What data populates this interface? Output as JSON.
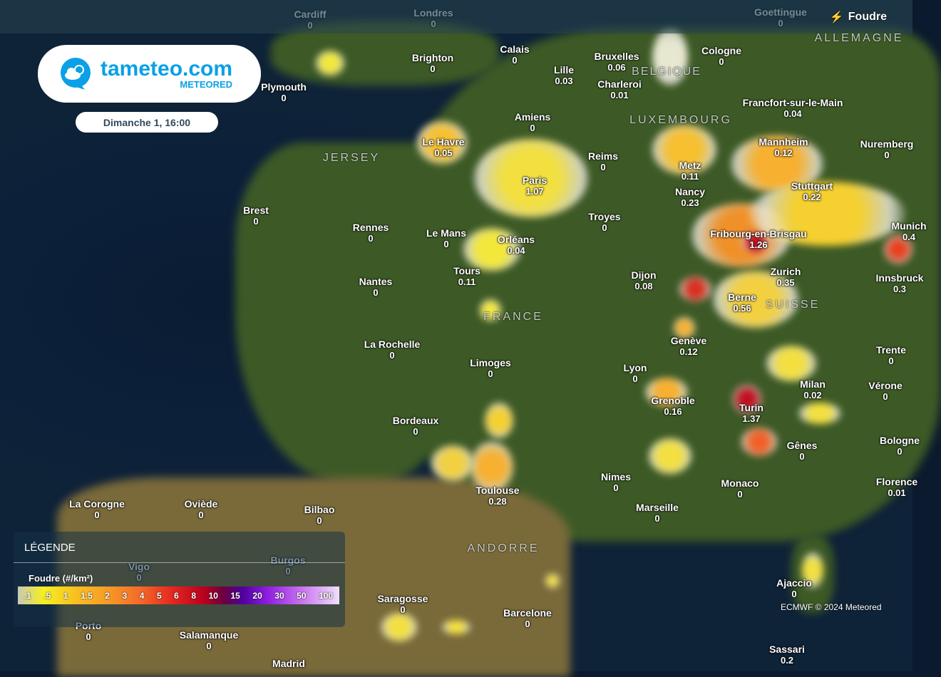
{
  "header": {
    "layer_label": "Foudre",
    "layer_icon": "lightning-icon"
  },
  "brand": {
    "name": "tameteo.com",
    "sub": "METEORED",
    "icon": "cloud-sun-chat-icon",
    "color": "#0aa0e6"
  },
  "date_label": "Dimanche 1, 16:00",
  "legend": {
    "title": "LÉGENDE",
    "unit": "Foudre (#/km²)",
    "steps": [
      ".1",
      ".5",
      "1",
      "1.5",
      "2",
      "3",
      "4",
      "5",
      "6",
      "8",
      "10",
      "15",
      "20",
      "30",
      "50",
      "100"
    ]
  },
  "attribution": "ECMWF © 2024 Meteored",
  "regions": [
    "JERSEY",
    "BELGIQUE",
    "LUXEMBOURG",
    "ALLEMAGNE",
    "FRANCE",
    "SUISSE",
    "ANDORRE"
  ],
  "cities": [
    {
      "name": "Cardiff",
      "value": "0"
    },
    {
      "name": "Londres",
      "value": "0"
    },
    {
      "name": "Goettingue",
      "value": "0"
    },
    {
      "name": "Calais",
      "value": "0"
    },
    {
      "name": "Brighton",
      "value": "0"
    },
    {
      "name": "Bruxelles",
      "value": "0.06"
    },
    {
      "name": "Cologne",
      "value": "0"
    },
    {
      "name": "Lille",
      "value": "0.03"
    },
    {
      "name": "Charleroi",
      "value": "0.01"
    },
    {
      "name": "Plymouth",
      "value": "0"
    },
    {
      "name": "Francfort-sur-le-Main",
      "value": "0.04"
    },
    {
      "name": "Amiens",
      "value": "0"
    },
    {
      "name": "Le Havre",
      "value": "0.05"
    },
    {
      "name": "Mannheim",
      "value": "0.12"
    },
    {
      "name": "Nuremberg",
      "value": "0"
    },
    {
      "name": "Reims",
      "value": "0"
    },
    {
      "name": "Metz",
      "value": "0.11"
    },
    {
      "name": "Paris",
      "value": "1.07"
    },
    {
      "name": "Stuttgart",
      "value": "0.22"
    },
    {
      "name": "Nancy",
      "value": "0.23"
    },
    {
      "name": "Brest",
      "value": "0"
    },
    {
      "name": "Troyes",
      "value": "0"
    },
    {
      "name": "Rennes",
      "value": "0"
    },
    {
      "name": "Le Mans",
      "value": "0"
    },
    {
      "name": "Fribourg-en-Brisgau",
      "value": "1.26"
    },
    {
      "name": "Orléans",
      "value": "0.04"
    },
    {
      "name": "Munich",
      "value": "0.4"
    },
    {
      "name": "Tours",
      "value": "0.11"
    },
    {
      "name": "Zurich",
      "value": "0.35"
    },
    {
      "name": "Innsbruck",
      "value": "0.3"
    },
    {
      "name": "Dijon",
      "value": "0.08"
    },
    {
      "name": "Nantes",
      "value": "0"
    },
    {
      "name": "Berne",
      "value": "0.56"
    },
    {
      "name": "Genève",
      "value": "0.12"
    },
    {
      "name": "La Rochelle",
      "value": "0"
    },
    {
      "name": "Trente",
      "value": "0"
    },
    {
      "name": "Limoges",
      "value": "0"
    },
    {
      "name": "Lyon",
      "value": "0"
    },
    {
      "name": "Milan",
      "value": "0.02"
    },
    {
      "name": "Vérone",
      "value": "0"
    },
    {
      "name": "Grenoble",
      "value": "0.16"
    },
    {
      "name": "Turin",
      "value": "1.37"
    },
    {
      "name": "Bordeaux",
      "value": "0"
    },
    {
      "name": "Bologne",
      "value": "0"
    },
    {
      "name": "Gênes",
      "value": "0"
    },
    {
      "name": "Nimes",
      "value": "0"
    },
    {
      "name": "Monaco",
      "value": "0"
    },
    {
      "name": "Florence",
      "value": "0.01"
    },
    {
      "name": "Toulouse",
      "value": "0.28"
    },
    {
      "name": "La Corogne",
      "value": "0"
    },
    {
      "name": "Oviède",
      "value": "0"
    },
    {
      "name": "Bilbao",
      "value": "0"
    },
    {
      "name": "Marseille",
      "value": "0"
    },
    {
      "name": "Burgos",
      "value": "0"
    },
    {
      "name": "Vigo",
      "value": "0"
    },
    {
      "name": "Ajaccio",
      "value": "0"
    },
    {
      "name": "Saragosse",
      "value": "0"
    },
    {
      "name": "Barcelone",
      "value": "0"
    },
    {
      "name": "Porto",
      "value": "0"
    },
    {
      "name": "Salamanque",
      "value": "0"
    },
    {
      "name": "Sassari",
      "value": "0.2"
    },
    {
      "name": "Madrid",
      "value": ""
    }
  ]
}
